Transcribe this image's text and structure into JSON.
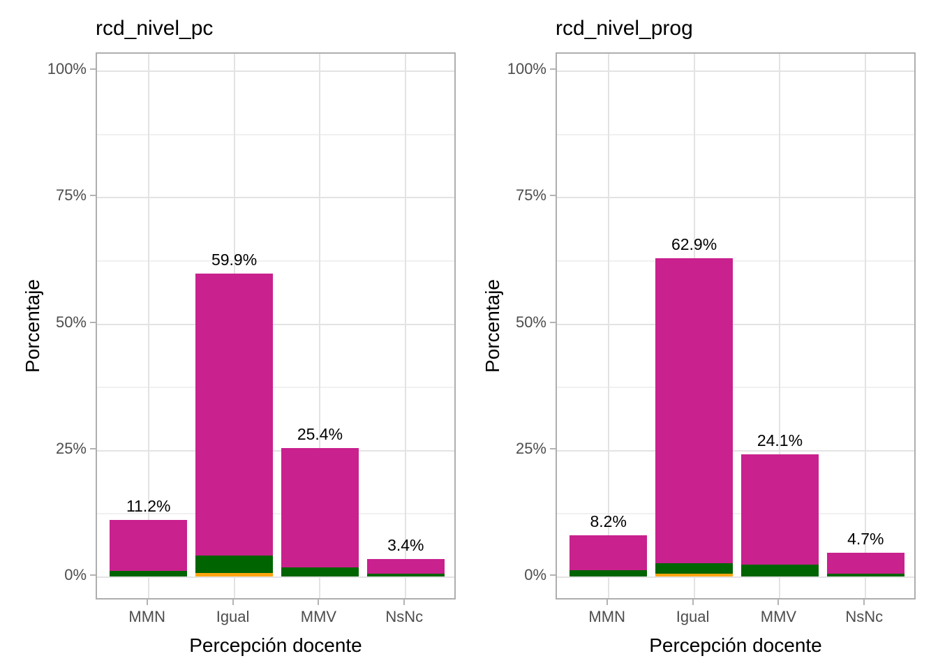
{
  "figure": {
    "background": "#FFFFFF"
  },
  "theme": {
    "text_color": "#000000",
    "axis_text_color": "#4D4D4D",
    "grid_major_color": "#E3E3E3",
    "grid_minor_color": "#F0F0F0",
    "panel_border_color": "#AEAEAE",
    "tick_color": "#B3B3B3",
    "panel_background": "#FFFFFF"
  },
  "chart_data": [
    {
      "type": "bar",
      "stacked": true,
      "title": "rcd_nivel_pc",
      "xlabel": "Percepción docente",
      "ylabel": "Porcentaje",
      "categories": [
        "MMN",
        "Igual",
        "MMV",
        "NsNc"
      ],
      "totals": [
        11.2,
        59.9,
        25.4,
        3.4
      ],
      "total_labels": [
        "11.2%",
        "59.9%",
        "25.4%",
        "3.4%"
      ],
      "series": [
        {
          "name": "segment-orange",
          "color": "#FFA513",
          "values": [
            0,
            0.7,
            0,
            0
          ]
        },
        {
          "name": "segment-darkgreen",
          "color": "#006400",
          "values": [
            1.1,
            3.4,
            1.8,
            0.5
          ]
        },
        {
          "name": "segment-magenta",
          "color": "#C9218E",
          "values": [
            10.1,
            55.8,
            23.6,
            2.9
          ]
        }
      ],
      "y_ticks": [
        "0%",
        "25%",
        "50%",
        "75%",
        "100%"
      ],
      "y_tick_values": [
        0,
        25,
        50,
        75,
        100
      ],
      "y_minor_values": [
        12.5,
        37.5,
        62.5,
        87.5
      ],
      "ylim": [
        0,
        100
      ],
      "grid": true,
      "legend": "none"
    },
    {
      "type": "bar",
      "stacked": true,
      "title": "rcd_nivel_prog",
      "xlabel": "Percepción docente",
      "ylabel": "Porcentaje",
      "categories": [
        "MMN",
        "Igual",
        "MMV",
        "NsNc"
      ],
      "totals": [
        8.2,
        62.9,
        24.1,
        4.7
      ],
      "total_labels": [
        "8.2%",
        "62.9%",
        "24.1%",
        "4.7%"
      ],
      "series": [
        {
          "name": "segment-orange",
          "color": "#FFA513",
          "values": [
            0,
            0.5,
            0,
            0
          ]
        },
        {
          "name": "segment-darkgreen",
          "color": "#006400",
          "values": [
            1.3,
            2.1,
            2.3,
            0.5
          ]
        },
        {
          "name": "segment-magenta",
          "color": "#C9218E",
          "values": [
            6.9,
            60.3,
            21.8,
            4.2
          ]
        }
      ],
      "y_ticks": [
        "0%",
        "25%",
        "50%",
        "75%",
        "100%"
      ],
      "y_tick_values": [
        0,
        25,
        50,
        75,
        100
      ],
      "y_minor_values": [
        12.5,
        37.5,
        62.5,
        87.5
      ],
      "ylim": [
        0,
        100
      ],
      "grid": true,
      "legend": "none"
    }
  ]
}
